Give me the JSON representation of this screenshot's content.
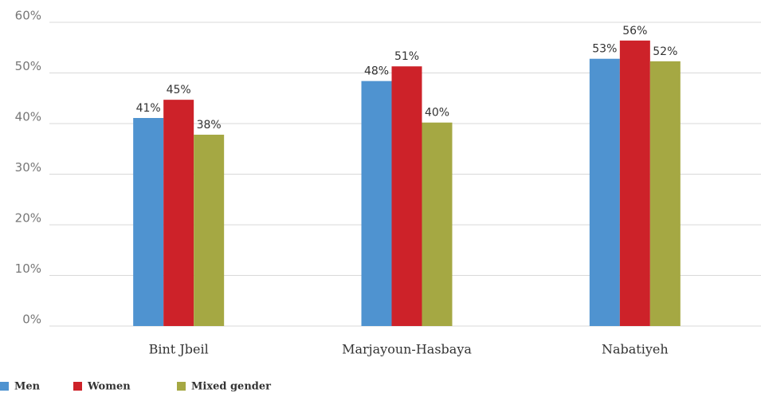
{
  "chart_data": {
    "type": "bar",
    "categories": [
      "Bint Jbeil",
      "Marjayoun-Hasbaya",
      "Nabatiyeh"
    ],
    "series": [
      {
        "name": "Men",
        "color": "#4f93d0",
        "values": [
          41.1,
          48.4,
          52.8
        ],
        "value_labels": [
          "41%",
          "48%",
          "53%"
        ]
      },
      {
        "name": "Women",
        "color": "#cd2229",
        "values": [
          44.7,
          51.3,
          56.4
        ],
        "value_labels": [
          "45%",
          "51%",
          "56%"
        ]
      },
      {
        "name": "Mixed gender",
        "color": "#a5a843",
        "values": [
          37.8,
          40.2,
          52.3
        ],
        "value_labels": [
          "38%",
          "40%",
          "52%"
        ]
      }
    ],
    "ylim": [
      0,
      60
    ],
    "yticks": [
      {
        "value": 0,
        "label": "0%"
      },
      {
        "value": 10,
        "label": "10%"
      },
      {
        "value": 20,
        "label": "20%"
      },
      {
        "value": 30,
        "label": "30%"
      },
      {
        "value": 40,
        "label": "40%"
      },
      {
        "value": 50,
        "label": "50%"
      },
      {
        "value": 60,
        "label": "60%"
      }
    ],
    "grid": true
  }
}
